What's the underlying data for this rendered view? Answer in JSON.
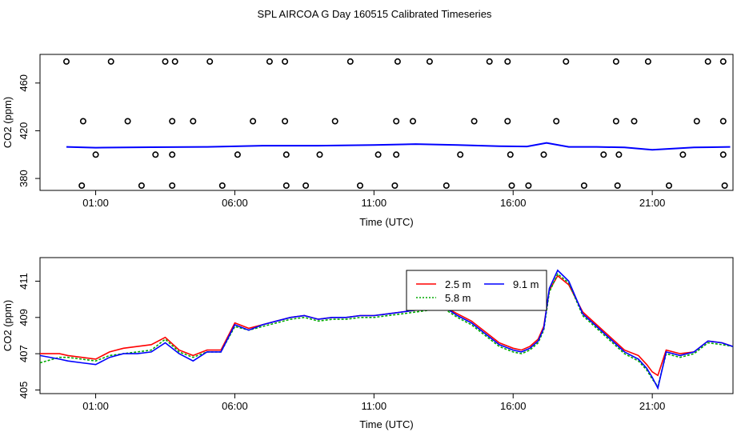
{
  "title": "SPL AIRCOA G  Day 160515  Calibrated Timeseries",
  "chart_data": [
    {
      "type": "scatter",
      "xlabel": "Time (UTC)",
      "ylabel": "CO2 (ppm)",
      "xlim": [
        -1.0,
        23.9
      ],
      "ylim": [
        370,
        484
      ],
      "x_ticks": [
        1,
        6,
        11,
        16,
        21
      ],
      "x_tick_labels": [
        "01:00",
        "06:00",
        "11:00",
        "16:00",
        "21:00"
      ],
      "y_ticks": [
        380,
        420,
        460
      ],
      "y_tick_labels": [
        "380",
        "420",
        "460"
      ],
      "grid": false,
      "legend": "none",
      "reference_line": {
        "color": "#0000ff",
        "x": [
          -0.05,
          1,
          3,
          5,
          7,
          9,
          11,
          12.5,
          14,
          15.5,
          16.5,
          17.2,
          18,
          19,
          20,
          21,
          22.5,
          23.8
        ],
        "y": [
          406.5,
          405.8,
          406.2,
          406.5,
          407.5,
          407.5,
          408,
          408.8,
          408,
          407,
          406.8,
          409.8,
          406.5,
          406.5,
          406,
          404,
          406,
          406.5
        ]
      },
      "points": {
        "marker": "open-circle",
        "x": [
          -0.05,
          1.55,
          3.5,
          3.85,
          5.1,
          7.25,
          7.8,
          10.15,
          11.85,
          13.0,
          15.15,
          15.8,
          17.9,
          19.7,
          20.85,
          23.0,
          23.55,
          0.55,
          2.15,
          3.75,
          4.5,
          6.65,
          7.8,
          9.6,
          11.8,
          12.4,
          14.6,
          15.8,
          17.55,
          19.7,
          20.35,
          22.6,
          23.55,
          1.0,
          3.15,
          3.75,
          6.1,
          7.85,
          9.05,
          11.15,
          11.8,
          14.1,
          15.9,
          17.1,
          19.25,
          19.8,
          22.1,
          23.55,
          0.5,
          2.65,
          3.75,
          5.55,
          7.85,
          8.55,
          10.5,
          11.75,
          13.6,
          15.95,
          16.55,
          18.55,
          19.75,
          21.6,
          23.6
        ],
        "y": [
          478,
          478,
          478,
          478,
          478,
          478,
          478,
          478,
          478,
          478,
          478,
          478,
          478,
          478,
          478,
          478,
          478,
          428,
          428,
          428,
          428,
          428,
          428,
          428,
          428,
          428,
          428,
          428,
          428,
          428,
          428,
          428,
          428,
          400,
          400,
          400,
          400,
          400,
          400,
          400,
          400,
          400,
          400,
          400,
          400,
          400,
          400,
          400,
          374,
          374,
          374,
          374,
          374,
          374,
          374,
          374,
          374,
          374,
          374,
          374,
          374,
          374,
          374
        ]
      }
    },
    {
      "type": "line",
      "xlabel": "Time (UTC)",
      "ylabel": "CO2 (ppm)",
      "xlim": [
        -1.0,
        23.9
      ],
      "ylim": [
        404.8,
        412.3
      ],
      "x_ticks": [
        1,
        6,
        11,
        16,
        21
      ],
      "x_tick_labels": [
        "01:00",
        "06:00",
        "11:00",
        "16:00",
        "21:00"
      ],
      "y_ticks": [
        405,
        407,
        409,
        411
      ],
      "y_tick_labels": [
        "405",
        "407",
        "409",
        "411"
      ],
      "grid": false,
      "legend": "top-center",
      "x": [
        -1.0,
        -0.3,
        0,
        0.5,
        1,
        1.5,
        2,
        2.5,
        3,
        3.5,
        4,
        4.5,
        5,
        5.5,
        6,
        6.5,
        7,
        7.5,
        8,
        8.5,
        9,
        9.5,
        10,
        10.5,
        11,
        11.5,
        12,
        12.5,
        13,
        13.5,
        14,
        14.5,
        15,
        15.5,
        16,
        16.3,
        16.6,
        16.9,
        17.1,
        17.3,
        17.6,
        18,
        18.5,
        19,
        19.5,
        20,
        20.5,
        20.8,
        21,
        21.2,
        21.5,
        22,
        22.5,
        23,
        23.5,
        23.9
      ],
      "series": [
        {
          "name": "2.5 m",
          "color": "#ff0000",
          "values": [
            407.0,
            407.0,
            406.9,
            406.8,
            406.7,
            407.1,
            407.3,
            407.4,
            407.5,
            407.9,
            407.2,
            406.9,
            407.2,
            407.2,
            408.7,
            408.4,
            408.6,
            408.8,
            409.0,
            409.1,
            408.9,
            409.0,
            409.0,
            409.1,
            409.1,
            409.2,
            409.3,
            409.4,
            409.5,
            409.6,
            409.2,
            408.8,
            408.2,
            407.6,
            407.3,
            407.2,
            407.4,
            407.8,
            408.5,
            410.5,
            411.3,
            410.8,
            409.3,
            408.6,
            407.9,
            407.2,
            406.9,
            406.4,
            406.0,
            405.8,
            407.2,
            407.0,
            407.1,
            407.7,
            407.6,
            407.4
          ]
        },
        {
          "name": "5.8 m",
          "color": "#00aa00",
          "values": [
            406.5,
            406.8,
            406.8,
            406.7,
            406.6,
            406.9,
            407.0,
            407.1,
            407.2,
            407.8,
            407.1,
            406.8,
            407.1,
            407.1,
            408.5,
            408.3,
            408.5,
            408.7,
            408.9,
            409.0,
            408.8,
            408.9,
            408.9,
            409.0,
            409.0,
            409.1,
            409.2,
            409.3,
            409.4,
            409.5,
            409.0,
            408.6,
            408.0,
            407.4,
            407.1,
            407.0,
            407.2,
            407.6,
            408.3,
            410.4,
            411.4,
            410.9,
            409.1,
            408.4,
            407.7,
            407.0,
            406.6,
            406.1,
            405.6,
            405.2,
            407.0,
            406.8,
            407.0,
            407.6,
            407.5,
            407.4
          ]
        },
        {
          "name": "9.1 m",
          "color": "#0000ff",
          "values": [
            406.9,
            406.7,
            406.6,
            406.5,
            406.4,
            406.8,
            407.0,
            407.0,
            407.1,
            407.6,
            407.0,
            406.6,
            407.1,
            407.1,
            408.6,
            408.3,
            408.6,
            408.8,
            409.0,
            409.1,
            408.9,
            409.0,
            409.0,
            409.1,
            409.1,
            409.2,
            409.3,
            409.4,
            409.5,
            409.6,
            409.1,
            408.7,
            408.1,
            407.5,
            407.2,
            407.1,
            407.3,
            407.7,
            408.4,
            410.6,
            411.6,
            411.0,
            409.2,
            408.5,
            407.8,
            407.1,
            406.7,
            406.2,
            405.7,
            405.1,
            407.1,
            406.9,
            407.1,
            407.7,
            407.6,
            407.4
          ]
        }
      ]
    }
  ]
}
